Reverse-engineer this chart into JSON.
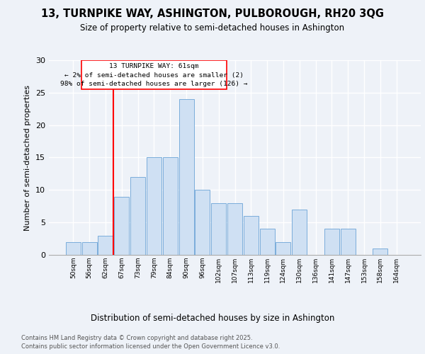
{
  "title1": "13, TURNPIKE WAY, ASHINGTON, PULBOROUGH, RH20 3QG",
  "title2": "Size of property relative to semi-detached houses in Ashington",
  "xlabel": "Distribution of semi-detached houses by size in Ashington",
  "ylabel": "Number of semi-detached properties",
  "bar_color": "#cfe0f3",
  "bar_edge_color": "#7aaddb",
  "categories": [
    "50sqm",
    "56sqm",
    "62sqm",
    "67sqm",
    "73sqm",
    "79sqm",
    "84sqm",
    "90sqm",
    "96sqm",
    "102sqm",
    "107sqm",
    "113sqm",
    "119sqm",
    "124sqm",
    "130sqm",
    "136sqm",
    "141sqm",
    "147sqm",
    "153sqm",
    "158sqm",
    "164sqm"
  ],
  "values": [
    2,
    2,
    3,
    9,
    12,
    15,
    15,
    24,
    10,
    8,
    8,
    6,
    4,
    2,
    7,
    0,
    4,
    4,
    0,
    1,
    0
  ],
  "red_line_index": 2,
  "annotation_title": "13 TURNPIKE WAY: 61sqm",
  "annotation_line1": "← 2% of semi-detached houses are smaller (2)",
  "annotation_line2": "98% of semi-detached houses are larger (126) →",
  "ylim": [
    0,
    30
  ],
  "yticks": [
    0,
    5,
    10,
    15,
    20,
    25,
    30
  ],
  "footer1": "Contains HM Land Registry data © Crown copyright and database right 2025.",
  "footer2": "Contains public sector information licensed under the Open Government Licence v3.0.",
  "background_color": "#eef2f8",
  "plot_bg_color": "#eef2f8"
}
